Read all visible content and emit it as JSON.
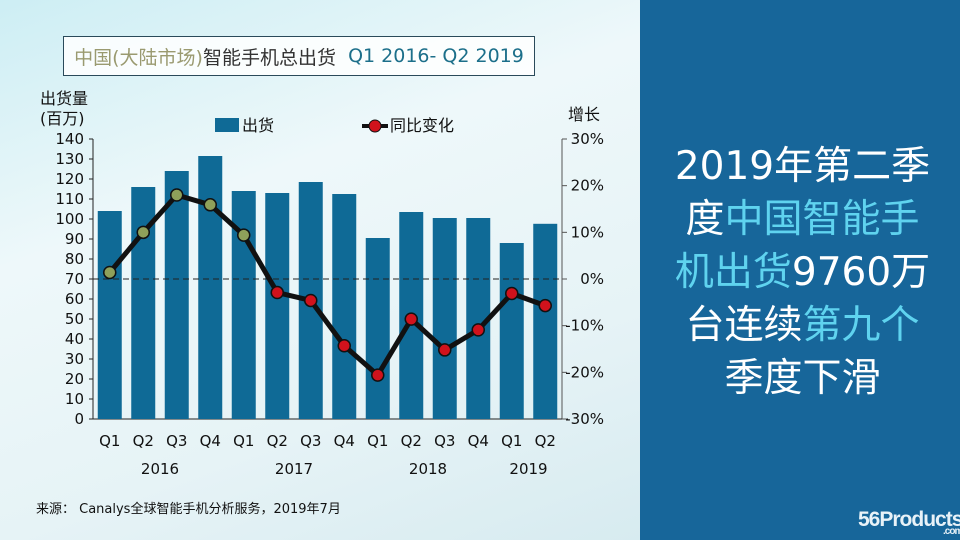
{
  "chart_data": {
    "type": "bar+line",
    "title_parts": [
      "中国(大陆市场)",
      "智能手机总出货",
      "Q1 2016- Q2 2019"
    ],
    "ylabel_left": [
      "出货量",
      "(百万)"
    ],
    "ylabel_right": "增长",
    "ylim_left": [
      0,
      140
    ],
    "ylim_right": [
      -30,
      30
    ],
    "left_ticks": [
      "0",
      "10",
      "20",
      "30",
      "40",
      "50",
      "60",
      "70",
      "80",
      "90",
      "100",
      "110",
      "120",
      "130",
      "140"
    ],
    "right_ticks": [
      "-30%",
      "-20%",
      "-10%",
      "0%",
      "10%",
      "20%",
      "30%"
    ],
    "categories": [
      "Q1",
      "Q2",
      "Q3",
      "Q4",
      "Q1",
      "Q2",
      "Q3",
      "Q4",
      "Q1",
      "Q2",
      "Q3",
      "Q4",
      "Q1",
      "Q2"
    ],
    "years": [
      "2016",
      "2017",
      "2018",
      "2019"
    ],
    "legend_position": "top",
    "series": [
      {
        "name": "出货",
        "type": "bar",
        "color": "#0f6a96",
        "values": [
          104,
          116,
          124,
          131.5,
          114,
          113,
          118.5,
          112.5,
          90.5,
          103.5,
          100.5,
          100.5,
          88,
          97.6
        ]
      },
      {
        "name": "同比变化",
        "type": "line",
        "color": "#111111",
        "values": [
          1.4,
          10,
          18,
          15.9,
          9.4,
          -2.9,
          -4.6,
          -14.3,
          -20.6,
          -8.6,
          -15.2,
          -10.9,
          -3.1,
          -5.7
        ]
      }
    ],
    "marker_colors": {
      "positive": "#8ea05a",
      "negative": "#d0121c"
    }
  },
  "headline": {
    "lines": [
      [
        {
          "t": "2019年第二季",
          "hl": false
        }
      ],
      [
        {
          "t": "度",
          "hl": false
        },
        {
          "t": "中国智能手",
          "hl": true
        }
      ],
      [
        {
          "t": "机出货",
          "hl": true
        },
        {
          "t": "9760万",
          "hl": false
        }
      ],
      [
        {
          "t": "台连续",
          "hl": false
        },
        {
          "t": "第九个",
          "hl": true
        }
      ],
      [
        {
          "t": "季度下滑",
          "hl": false
        }
      ]
    ]
  },
  "source": "来源： Canalys全球智能手机分析服务，2019年7月",
  "logo": {
    "text": "56Products",
    "sub": ".com"
  }
}
